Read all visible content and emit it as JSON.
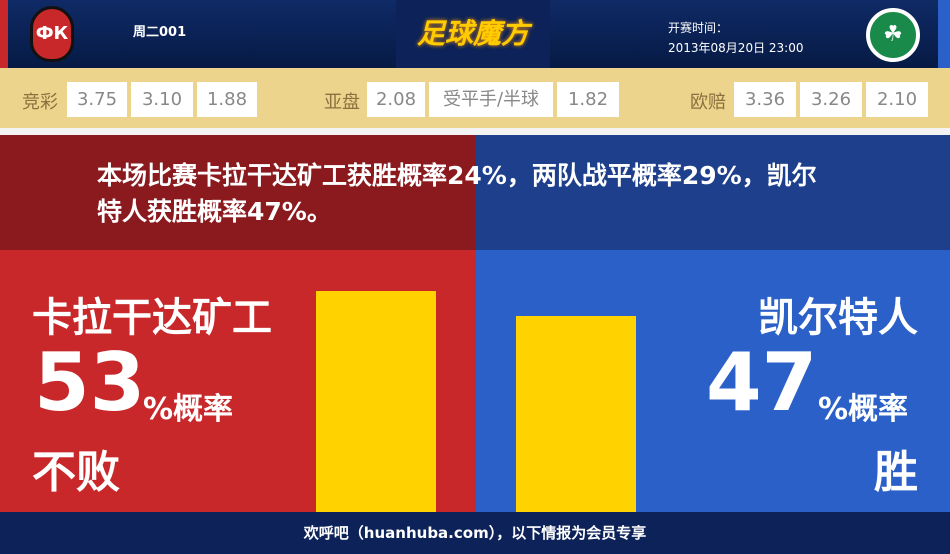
{
  "header": {
    "home_logo_text": "ФК",
    "match_no": "周二001",
    "brand": "足球魔方",
    "kickoff_label": "开赛时间：",
    "kickoff_time": "2013年08月20日 23:00",
    "away_logo_text": "☘"
  },
  "odds": {
    "jingcai": {
      "label": "竞彩",
      "values": [
        "3.75",
        "3.10",
        "1.88"
      ]
    },
    "yapan": {
      "label": "亚盘",
      "values": [
        "2.08",
        "受平手/半球",
        "1.82"
      ]
    },
    "oupei": {
      "label": "欧赔",
      "values": [
        "3.36",
        "3.26",
        "2.10"
      ]
    }
  },
  "summary": "本场比赛卡拉干达矿工获胜概率24%，两队战平概率29%，凯尔特人获胜概率47%。",
  "home": {
    "name": "卡拉干达矿工",
    "percent": 53,
    "percent_text": "53",
    "unit": "%概率",
    "outcome": "不败"
  },
  "away": {
    "name": "凯尔特人",
    "percent": 47,
    "percent_text": "47",
    "unit": "%概率",
    "outcome": "胜"
  },
  "colors": {
    "home": "#c8282a",
    "away": "#2a60c8",
    "bar": "#ffd200"
  },
  "footer": "欢呼吧（huanhuba.com），以下情报为会员专享"
}
